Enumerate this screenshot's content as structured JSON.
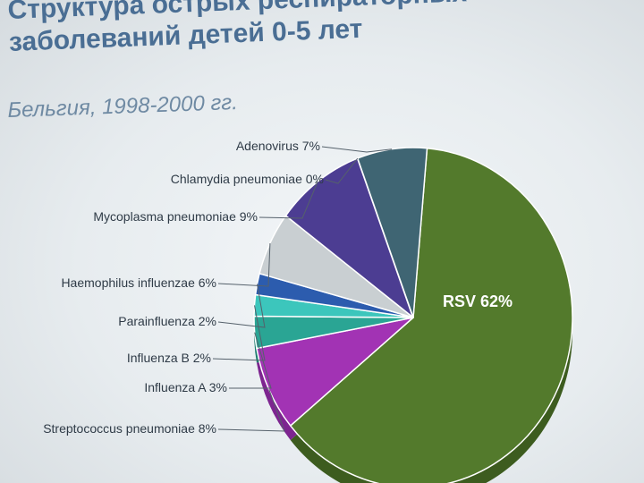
{
  "slide": {
    "title_line1": "Структура острых респираторных",
    "title_line2": "заболеваний детей 0-5 лет",
    "subtitle": "Бельгия, 1998-2000 гг."
  },
  "chart_data": {
    "type": "pie",
    "title": "",
    "slices": [
      {
        "label": "RSV",
        "value": 62,
        "text": "RSV 62%",
        "color": "#537a2c",
        "side": "#3d5c1f"
      },
      {
        "label": "Streptococcus pneumoniae",
        "value": 8,
        "text": "Streptococcus pneumoniae 8%",
        "color": "#a233b4",
        "side": "#7d2590"
      },
      {
        "label": "Influenza A",
        "value": 3,
        "text": "Influenza A 3%",
        "color": "#2aa594",
        "side": "#1f7d70"
      },
      {
        "label": "Influenza B",
        "value": 2,
        "text": "Influenza B 2%",
        "color": "#3cc6bc",
        "side": "#2a9b92"
      },
      {
        "label": "Parainfluenza",
        "value": 2,
        "text": "Parainfluenza 2%",
        "color": "#2c5cae",
        "side": "#204487"
      },
      {
        "label": "Haemophilus influenzae",
        "value": 6,
        "text": "Haemophilus influenzae 6%",
        "color": "#c9cfd2",
        "side": "#9aa2a6"
      },
      {
        "label": "Mycoplasma pneumoniae",
        "value": 9,
        "text": "Mycoplasma pneumoniae 9%",
        "color": "#4c3d92",
        "side": "#382c6e"
      },
      {
        "label": "Chlamydia pneumoniae",
        "value": 0,
        "text": "Chlamydia pneumoniae 0%",
        "color": "#5a6c74",
        "side": "#434f55"
      },
      {
        "label": "Adenovirus",
        "value": 7,
        "text": "Adenovirus 7%",
        "color": "#3f6573",
        "side": "#2e4b56"
      }
    ],
    "inside_label": "RSV",
    "legend": "none"
  }
}
